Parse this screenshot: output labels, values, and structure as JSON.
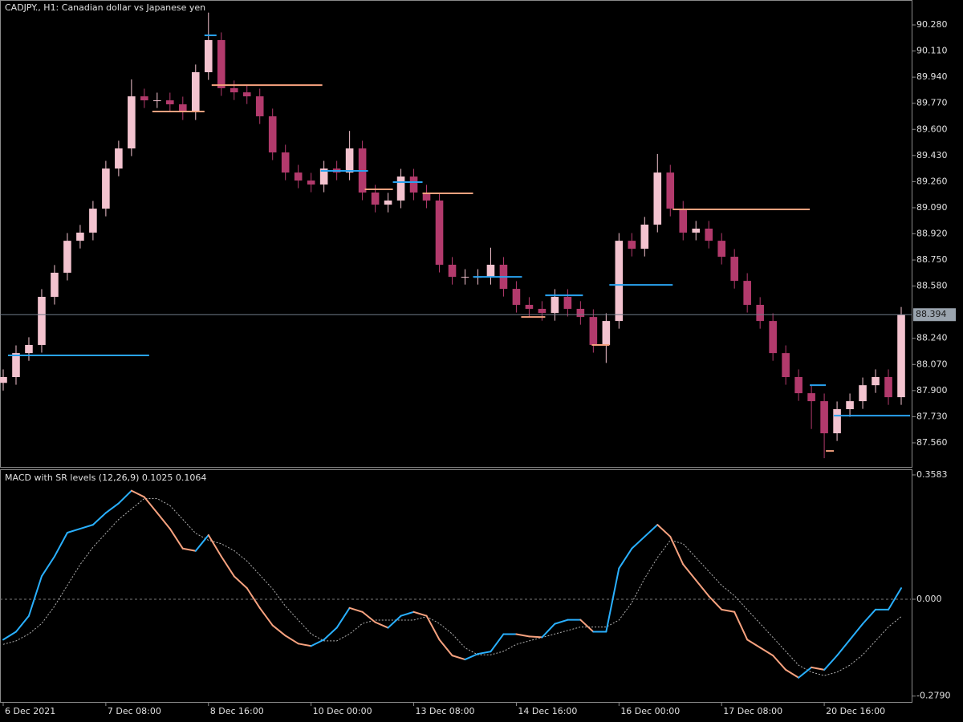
{
  "chart_data": [
    {
      "type": "candlestick",
      "title": "CADJPY., H1:  Canadian dollar vs Japanese yen",
      "x": [
        0,
        4,
        8,
        12,
        16,
        20,
        24,
        28,
        32,
        36,
        40,
        44,
        48,
        52,
        56,
        60,
        64,
        68,
        72,
        76,
        80,
        84,
        88,
        92,
        96,
        100,
        104,
        108,
        112,
        116,
        120,
        124,
        128,
        132,
        136,
        140,
        144,
        148,
        152,
        156,
        160,
        164,
        168,
        172,
        176,
        180,
        184,
        188,
        192,
        196,
        200,
        204,
        208,
        212,
        216,
        220,
        224,
        228,
        232,
        236,
        240,
        244,
        248,
        252,
        256,
        260,
        264,
        268,
        272,
        276,
        280
      ],
      "open": [
        87.95,
        87.988,
        88.144,
        88.197,
        88.51,
        88.667,
        88.875,
        88.928,
        89.084,
        89.345,
        89.476,
        89.815,
        89.789,
        89.789,
        89.763,
        89.711,
        89.972,
        90.181,
        89.868,
        89.841,
        89.815,
        89.685,
        89.45,
        89.319,
        89.267,
        89.241,
        89.345,
        89.319,
        89.476,
        89.189,
        89.11,
        89.137,
        89.293,
        89.189,
        89.137,
        88.719,
        88.64,
        88.64,
        88.64,
        88.719,
        88.562,
        88.458,
        88.432,
        88.405,
        88.51,
        88.432,
        88.379,
        88.197,
        88.353,
        88.875,
        88.823,
        88.98,
        89.319,
        89.084,
        88.928,
        88.954,
        88.875,
        88.771,
        88.614,
        88.458,
        88.353,
        88.144,
        87.988,
        87.883,
        87.831,
        87.622,
        87.779,
        87.831,
        87.935,
        87.988,
        87.857
      ],
      "high": [
        88.038,
        88.194,
        88.247,
        88.56,
        88.717,
        88.925,
        88.978,
        89.134,
        89.395,
        89.526,
        89.925,
        89.865,
        89.839,
        89.839,
        89.813,
        90.022,
        90.36,
        90.231,
        89.918,
        89.891,
        89.865,
        89.735,
        89.5,
        89.369,
        89.317,
        89.395,
        89.395,
        89.59,
        89.526,
        89.239,
        89.187,
        89.343,
        89.343,
        89.239,
        89.187,
        88.769,
        88.69,
        88.69,
        88.83,
        88.769,
        88.612,
        88.508,
        88.482,
        88.56,
        88.56,
        88.482,
        88.429,
        88.403,
        88.925,
        88.925,
        89.03,
        89.44,
        89.369,
        89.134,
        89.004,
        89.004,
        88.925,
        88.821,
        88.664,
        88.508,
        88.403,
        88.194,
        88.038,
        87.933,
        87.881,
        87.829,
        87.881,
        87.985,
        88.038,
        88.038,
        88.444
      ],
      "low": [
        87.9,
        87.938,
        88.094,
        88.147,
        88.46,
        88.617,
        88.825,
        88.878,
        89.034,
        89.295,
        89.426,
        89.739,
        89.739,
        89.713,
        89.661,
        89.661,
        89.922,
        89.818,
        89.791,
        89.765,
        89.635,
        89.4,
        89.269,
        89.217,
        89.191,
        89.191,
        89.269,
        89.269,
        89.139,
        89.06,
        89.06,
        89.087,
        89.139,
        89.087,
        88.669,
        88.59,
        88.59,
        88.59,
        88.59,
        88.512,
        88.408,
        88.382,
        88.355,
        88.355,
        88.382,
        88.329,
        88.147,
        88.08,
        88.303,
        88.773,
        88.773,
        88.93,
        89.034,
        88.878,
        88.878,
        88.825,
        88.721,
        88.564,
        88.408,
        88.303,
        88.094,
        87.938,
        87.833,
        87.65,
        87.46,
        87.572,
        87.729,
        87.781,
        87.885,
        87.807,
        87.807
      ],
      "close": [
        87.988,
        88.144,
        88.197,
        88.51,
        88.667,
        88.875,
        88.928,
        89.084,
        89.345,
        89.476,
        89.815,
        89.789,
        89.789,
        89.763,
        89.711,
        89.972,
        90.181,
        89.868,
        89.841,
        89.815,
        89.685,
        89.45,
        89.319,
        89.267,
        89.241,
        89.345,
        89.319,
        89.476,
        89.189,
        89.11,
        89.137,
        89.293,
        89.189,
        89.137,
        88.719,
        88.64,
        88.64,
        88.64,
        88.719,
        88.562,
        88.458,
        88.432,
        88.405,
        88.51,
        88.432,
        88.379,
        88.197,
        88.353,
        88.875,
        88.823,
        88.98,
        89.319,
        89.084,
        88.928,
        88.954,
        88.875,
        88.771,
        88.614,
        88.458,
        88.353,
        88.144,
        87.988,
        87.883,
        87.831,
        87.622,
        87.779,
        87.831,
        87.935,
        87.988,
        87.857,
        88.394
      ],
      "up_color": "#f3c3cf",
      "down_color": "#b23a6c",
      "support_resistance": [
        {
          "price": 88.129,
          "start": 1.5,
          "end": 45.5,
          "color": "#29a3f0"
        },
        {
          "price": 90.212,
          "start": 62.75,
          "end": 66.5,
          "color": "#29a3f0"
        },
        {
          "price": 89.888,
          "start": 65,
          "end": 99.5,
          "color": "#f7a27f"
        },
        {
          "price": 89.716,
          "start": 46.5,
          "end": 62.75,
          "color": "#f7a27f"
        },
        {
          "price": 89.33,
          "start": 99,
          "end": 113.75,
          "color": "#29a3f0"
        },
        {
          "price": 89.21,
          "start": 112.75,
          "end": 121.5,
          "color": "#f7a27f"
        },
        {
          "price": 89.257,
          "start": 121.5,
          "end": 130.75,
          "color": "#29a3f0"
        },
        {
          "price": 89.184,
          "start": 130.75,
          "end": 146.5,
          "color": "#f7a27f"
        },
        {
          "price": 88.64,
          "start": 146.5,
          "end": 161.75,
          "color": "#29a3f0"
        },
        {
          "price": 88.379,
          "start": 161.5,
          "end": 169,
          "color": "#f7a27f"
        },
        {
          "price": 88.52,
          "start": 169,
          "end": 180.75,
          "color": "#29a3f0"
        },
        {
          "price": 88.197,
          "start": 183.5,
          "end": 189,
          "color": "#f7a27f"
        },
        {
          "price": 88.588,
          "start": 189,
          "end": 208.75,
          "color": "#29a3f0"
        },
        {
          "price": 89.079,
          "start": 208.75,
          "end": 251.5,
          "color": "#f7a27f"
        },
        {
          "price": 87.935,
          "start": 251.5,
          "end": 256.5,
          "color": "#29a3f0"
        },
        {
          "price": 87.507,
          "start": 256.5,
          "end": 259,
          "color": "#f7a27f"
        },
        {
          "price": 87.737,
          "start": 259,
          "end": 282.75,
          "color": "#29a3f0"
        }
      ],
      "last_price": 88.394,
      "xlim": [
        -1,
        283
      ],
      "ylim": [
        87.398,
        90.442
      ],
      "yticks": [
        {
          "value": 87.56,
          "label": "87.560"
        },
        {
          "value": 87.73,
          "label": "87.730"
        },
        {
          "value": 87.9,
          "label": "87.900"
        },
        {
          "value": 88.07,
          "label": "88.070"
        },
        {
          "value": 88.24,
          "label": "88.240"
        },
        {
          "value": 88.58,
          "label": "88.580"
        },
        {
          "value": 88.75,
          "label": "88.750"
        },
        {
          "value": 88.92,
          "label": "88.920"
        },
        {
          "value": 89.09,
          "label": "89.090"
        },
        {
          "value": 89.26,
          "label": "89.260"
        },
        {
          "value": 89.43,
          "label": "89.430"
        },
        {
          "value": 89.6,
          "label": "89.600"
        },
        {
          "value": 89.77,
          "label": "89.770"
        },
        {
          "value": 89.94,
          "label": "89.940"
        },
        {
          "value": 90.11,
          "label": "90.110"
        },
        {
          "value": 90.28,
          "label": "90.280"
        }
      ]
    },
    {
      "type": "macd",
      "title": "MACD with SR levels (12,26,9) 0.1025 0.1064",
      "x": [
        0,
        4,
        8,
        12,
        16,
        20,
        24,
        28,
        32,
        36,
        40,
        44,
        48,
        52,
        56,
        60,
        64,
        68,
        72,
        76,
        80,
        84,
        88,
        92,
        96,
        100,
        104,
        108,
        112,
        116,
        120,
        124,
        128,
        132,
        136,
        140,
        144,
        148,
        152,
        156,
        160,
        164,
        168,
        172,
        176,
        180,
        184,
        188,
        192,
        196,
        200,
        204,
        208,
        212,
        216,
        220,
        224,
        228,
        232,
        236,
        240,
        244,
        248,
        252,
        256,
        260,
        264,
        268,
        272,
        276,
        280
      ],
      "macd": [
        -0.1164,
        -0.0936,
        -0.0479,
        0.0662,
        0.1233,
        0.1918,
        0.2032,
        0.2146,
        0.2489,
        0.2763,
        0.3128,
        0.2945,
        0.2489,
        0.2032,
        0.1461,
        0.1393,
        0.1849,
        0.1233,
        0.0662,
        0.032,
        -0.0251,
        -0.0753,
        -0.105,
        -0.1279,
        -0.1347,
        -0.1164,
        -0.0822,
        -0.0251,
        -0.0365,
        -0.0662,
        -0.0822,
        -0.0479,
        -0.0365,
        -0.0479,
        -0.1164,
        -0.1621,
        -0.1735,
        -0.1575,
        -0.1507,
        -0.1005,
        -0.1005,
        -0.1073,
        -0.1096,
        -0.0708,
        -0.0594,
        -0.0594,
        -0.0936,
        -0.0936,
        0.089,
        0.1461,
        0.1804,
        0.2146,
        0.1804,
        0.1005,
        0.0548,
        0.0091,
        -0.0297,
        -0.0365,
        -0.1164,
        -0.1393,
        -0.1621,
        -0.2032,
        -0.226,
        -0.1963,
        -0.2032,
        -0.1621,
        -0.1164,
        -0.0708,
        -0.0297,
        -0.0297,
        0.032
      ],
      "signal": [
        -0.13,
        -0.12,
        -0.1,
        -0.07,
        -0.02,
        0.04,
        0.1,
        0.15,
        0.19,
        0.23,
        0.26,
        0.29,
        0.29,
        0.27,
        0.23,
        0.19,
        0.17,
        0.16,
        0.14,
        0.11,
        0.07,
        0.03,
        -0.02,
        -0.06,
        -0.1,
        -0.12,
        -0.12,
        -0.1,
        -0.07,
        -0.06,
        -0.06,
        -0.06,
        -0.06,
        -0.05,
        -0.07,
        -0.1,
        -0.14,
        -0.16,
        -0.16,
        -0.15,
        -0.13,
        -0.12,
        -0.11,
        -0.1,
        -0.09,
        -0.08,
        -0.08,
        -0.08,
        -0.06,
        -0.01,
        0.06,
        0.12,
        0.17,
        0.16,
        0.12,
        0.08,
        0.04,
        0.01,
        -0.03,
        -0.07,
        -0.11,
        -0.15,
        -0.19,
        -0.21,
        -0.22,
        -0.21,
        -0.19,
        -0.16,
        -0.12,
        -0.08,
        -0.05
      ],
      "rising_color": "#29b0ff",
      "falling_color": "#f7a27f",
      "signal_color": "#b0b0b0",
      "zero_line": true,
      "xlim": [
        -1,
        283
      ],
      "ylim": [
        -0.2959,
        0.3721
      ],
      "yticks": [
        0.3583,
        {
          "value": 0,
          "label": "0.000"
        },
        {
          "value": -0.279,
          "label": "-0.2790"
        }
      ],
      "xticks": [
        {
          "value": 0,
          "label": "6 Dec 2021"
        },
        {
          "value": 32,
          "label": "7 Dec 08:00"
        },
        {
          "value": 64,
          "label": "8 Dec 16:00"
        },
        {
          "value": 96,
          "label": "10 Dec 00:00"
        },
        {
          "value": 128,
          "label": "13 Dec 08:00"
        },
        {
          "value": 160,
          "label": "14 Dec 16:00"
        },
        {
          "value": 192,
          "label": "16 Dec 00:00"
        },
        {
          "value": 224,
          "label": "17 Dec 08:00"
        },
        {
          "value": 256,
          "label": "20 Dec 16:00"
        }
      ]
    }
  ]
}
